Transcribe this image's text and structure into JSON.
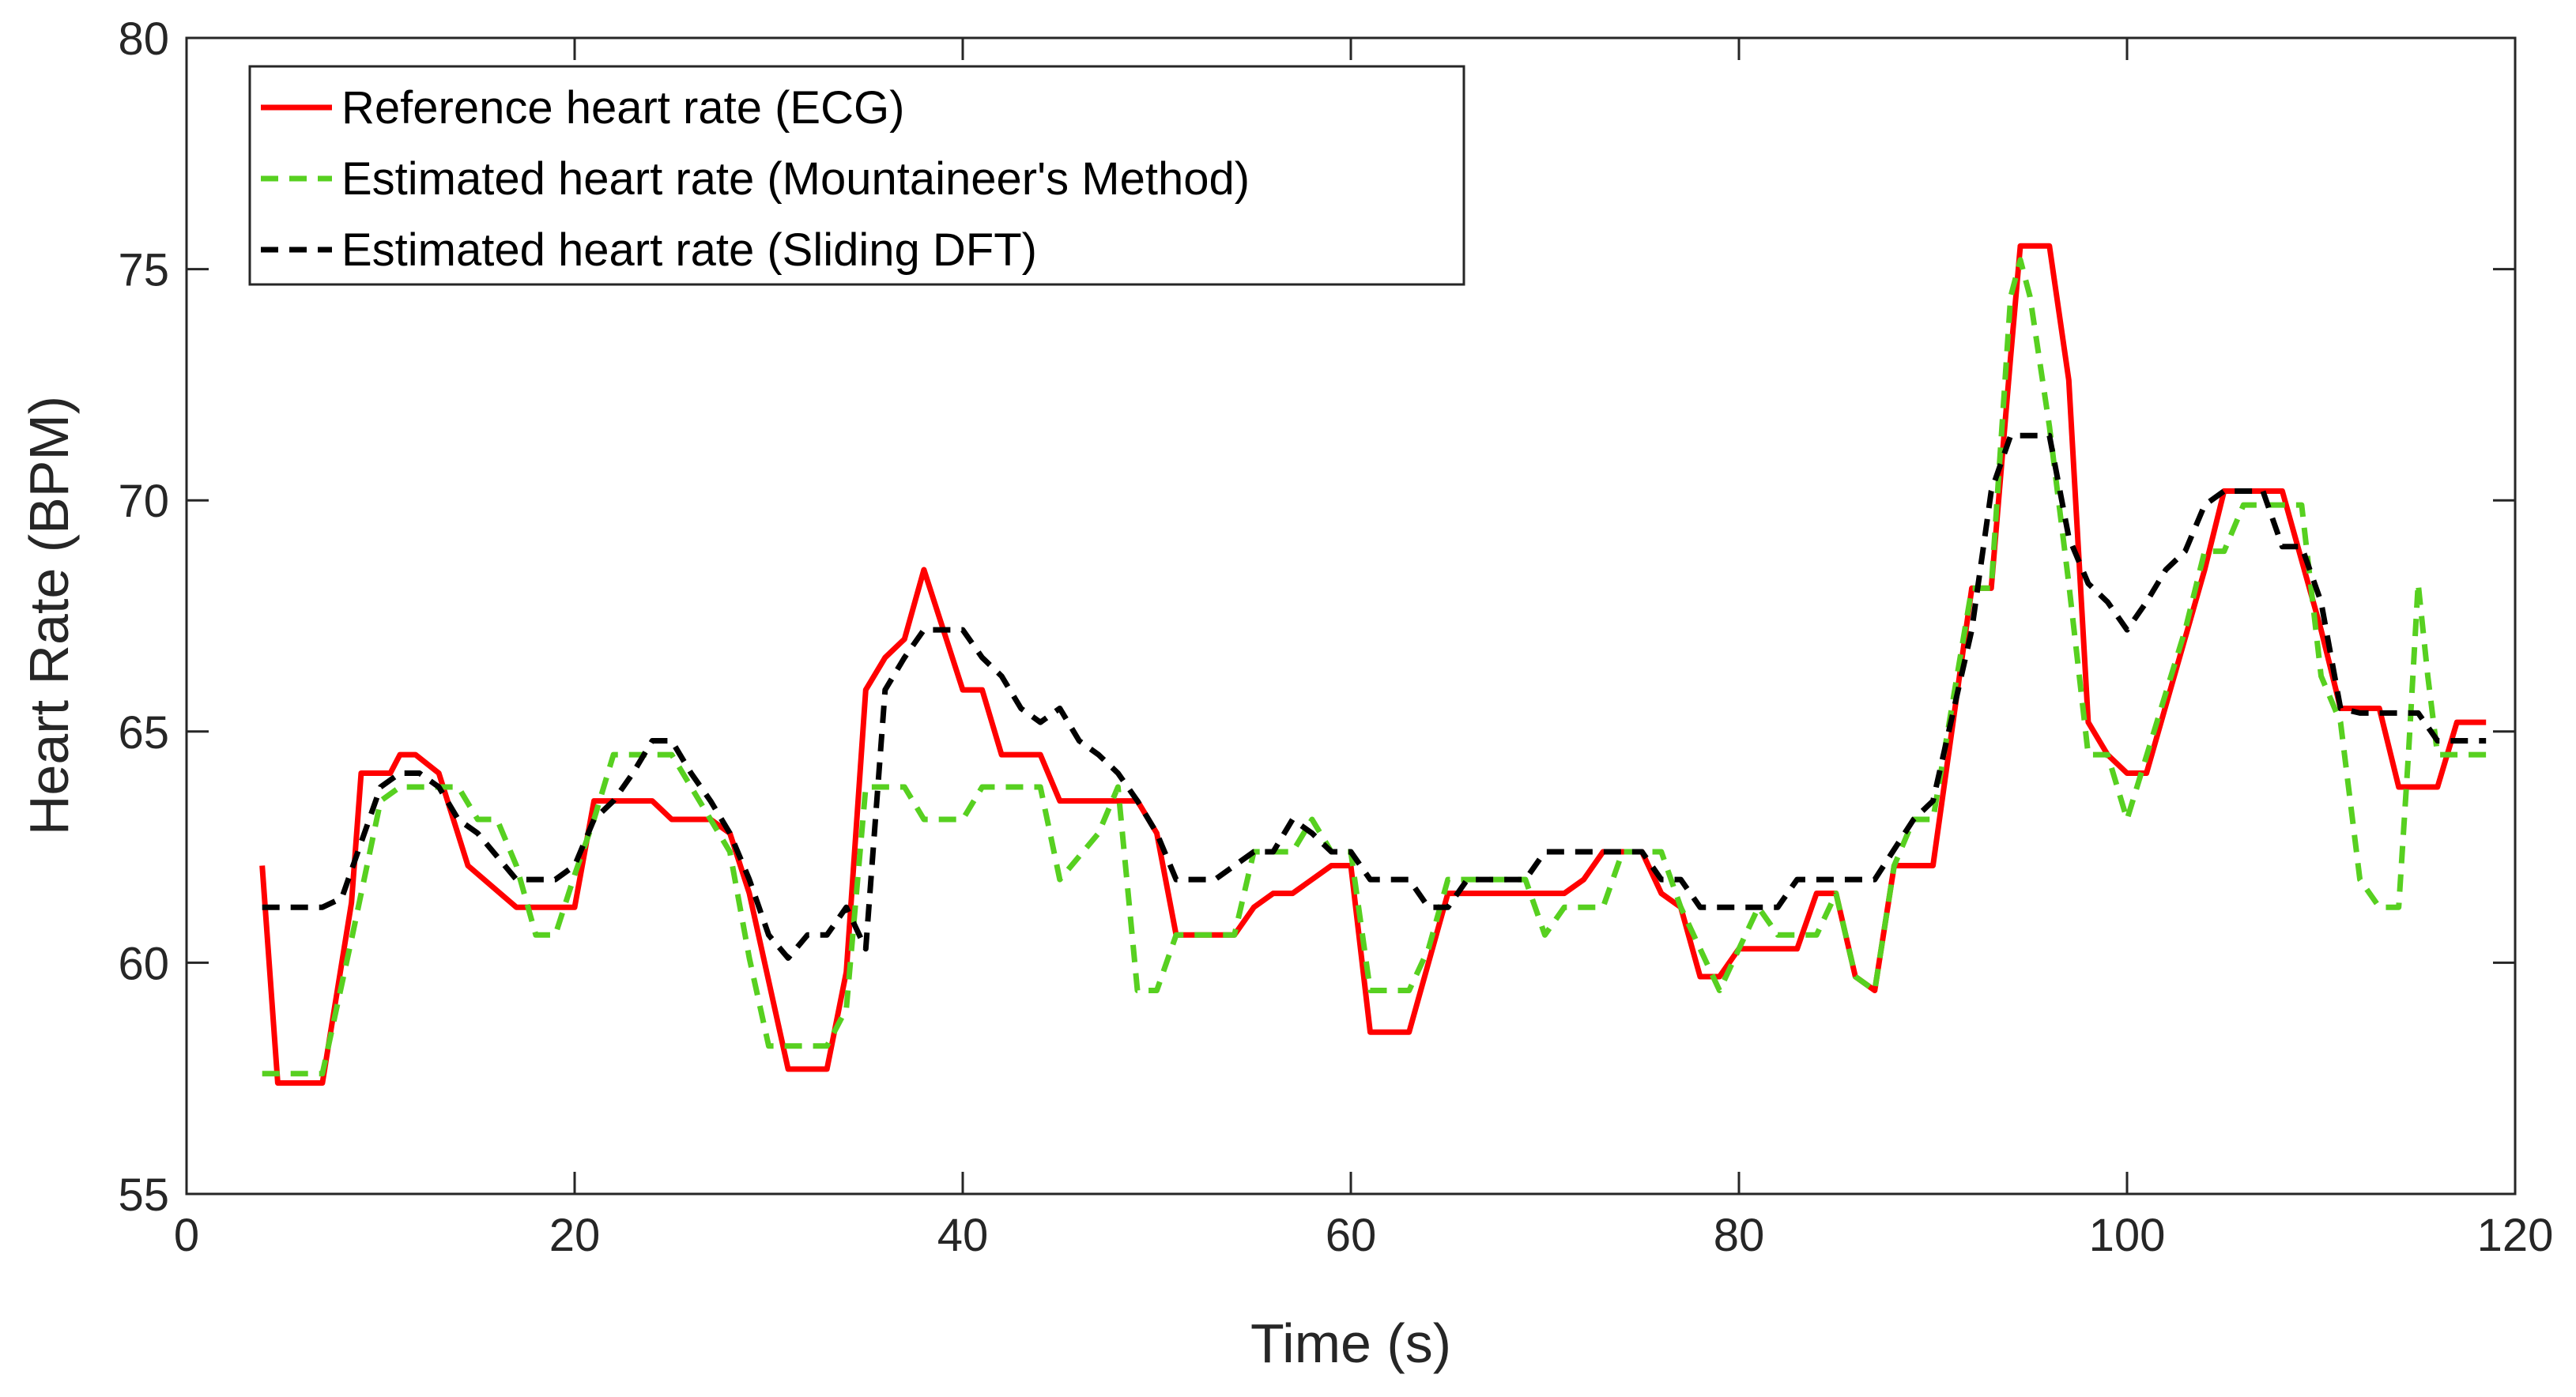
{
  "chart_data": {
    "type": "line",
    "title": "",
    "xlabel": "Time (s)",
    "ylabel": "Heart Rate (BPM)",
    "xlim": [
      0,
      120
    ],
    "ylim": [
      55,
      80
    ],
    "xticks": [
      0,
      20,
      40,
      60,
      80,
      100,
      120
    ],
    "yticks": [
      55,
      60,
      65,
      70,
      75,
      80
    ],
    "grid": false,
    "legend_position": "top-left",
    "series": [
      {
        "name": "Reference heart rate (ECG)",
        "color": "#ff0000",
        "dash": "solid",
        "points": [
          [
            3.9,
            62.1
          ],
          [
            4.7,
            57.4
          ],
          [
            7,
            57.4
          ],
          [
            8.5,
            61.3
          ],
          [
            9,
            64.1
          ],
          [
            10.5,
            64.1
          ],
          [
            11,
            64.5
          ],
          [
            11.8,
            64.5
          ],
          [
            13,
            64.1
          ],
          [
            14.5,
            62.1
          ],
          [
            17,
            61.2
          ],
          [
            20,
            61.2
          ],
          [
            21,
            63.5
          ],
          [
            24,
            63.5
          ],
          [
            25,
            63.1
          ],
          [
            27,
            63.1
          ],
          [
            28,
            62.8
          ],
          [
            29,
            61.5
          ],
          [
            31,
            57.7
          ],
          [
            33,
            57.7
          ],
          [
            34,
            59.8
          ],
          [
            35,
            65.9
          ],
          [
            36,
            66.6
          ],
          [
            37,
            67.0
          ],
          [
            38,
            68.5
          ],
          [
            40,
            65.9
          ],
          [
            41,
            65.9
          ],
          [
            42,
            64.5
          ],
          [
            44,
            64.5
          ],
          [
            45,
            63.5
          ],
          [
            49,
            63.5
          ],
          [
            50,
            62.8
          ],
          [
            51,
            60.6
          ],
          [
            54,
            60.6
          ],
          [
            55,
            61.2
          ],
          [
            56,
            61.5
          ],
          [
            57,
            61.5
          ],
          [
            59,
            62.1
          ],
          [
            60,
            62.1
          ],
          [
            61,
            58.5
          ],
          [
            63,
            58.5
          ],
          [
            65,
            61.5
          ],
          [
            70,
            61.5
          ],
          [
            71,
            61.5
          ],
          [
            72,
            61.8
          ],
          [
            73,
            62.4
          ],
          [
            75,
            62.4
          ],
          [
            76,
            61.5
          ],
          [
            77,
            61.2
          ],
          [
            78,
            59.7
          ],
          [
            79,
            59.7
          ],
          [
            80,
            60.3
          ],
          [
            83,
            60.3
          ],
          [
            84,
            61.5
          ],
          [
            85,
            61.5
          ],
          [
            86,
            59.7
          ],
          [
            87,
            59.4
          ],
          [
            88,
            62.1
          ],
          [
            90,
            62.1
          ],
          [
            92,
            68.1
          ],
          [
            93,
            68.1
          ],
          [
            94,
            73.1
          ],
          [
            94.5,
            75.5
          ],
          [
            96,
            75.5
          ],
          [
            97,
            72.6
          ],
          [
            98,
            65.2
          ],
          [
            99,
            64.5
          ],
          [
            100,
            64.1
          ],
          [
            101,
            64.1
          ],
          [
            104,
            68.5
          ],
          [
            105,
            70.2
          ],
          [
            106,
            70.2
          ],
          [
            108,
            70.2
          ],
          [
            110,
            67.2
          ],
          [
            111,
            65.5
          ],
          [
            113,
            65.5
          ],
          [
            114,
            63.8
          ],
          [
            116,
            63.8
          ],
          [
            117,
            65.2
          ],
          [
            118.5,
            65.2
          ]
        ]
      },
      {
        "name": "Estimated heart rate (Mountaineer's Method)",
        "color": "#57d020",
        "dash": "dashed",
        "points": [
          [
            3.9,
            57.6
          ],
          [
            5,
            57.6
          ],
          [
            7,
            57.6
          ],
          [
            8.5,
            60.5
          ],
          [
            10,
            63.5
          ],
          [
            11,
            63.8
          ],
          [
            14,
            63.8
          ],
          [
            15,
            63.1
          ],
          [
            16,
            63.1
          ],
          [
            17,
            62.1
          ],
          [
            18,
            60.6
          ],
          [
            19,
            60.6
          ],
          [
            20,
            61.9
          ],
          [
            21,
            63.1
          ],
          [
            22,
            64.5
          ],
          [
            25,
            64.5
          ],
          [
            27,
            63.1
          ],
          [
            28,
            62.4
          ],
          [
            29,
            60.1
          ],
          [
            30,
            58.2
          ],
          [
            33,
            58.2
          ],
          [
            34,
            59.0
          ],
          [
            35,
            63.8
          ],
          [
            37,
            63.8
          ],
          [
            38,
            63.1
          ],
          [
            40,
            63.1
          ],
          [
            41,
            63.8
          ],
          [
            44,
            63.8
          ],
          [
            45,
            61.8
          ],
          [
            47,
            62.8
          ],
          [
            48,
            63.8
          ],
          [
            49,
            59.4
          ],
          [
            50,
            59.4
          ],
          [
            51,
            60.6
          ],
          [
            54,
            60.6
          ],
          [
            55,
            62.4
          ],
          [
            57,
            62.4
          ],
          [
            58,
            63.1
          ],
          [
            59,
            62.4
          ],
          [
            60,
            62.4
          ],
          [
            61,
            59.4
          ],
          [
            63,
            59.4
          ],
          [
            64,
            60.3
          ],
          [
            65,
            61.8
          ],
          [
            68,
            61.8
          ],
          [
            69,
            61.8
          ],
          [
            70,
            60.6
          ],
          [
            71,
            61.2
          ],
          [
            73,
            61.2
          ],
          [
            74,
            62.4
          ],
          [
            76,
            62.4
          ],
          [
            77,
            61.2
          ],
          [
            79,
            59.4
          ],
          [
            80,
            60.3
          ],
          [
            81,
            61.2
          ],
          [
            82,
            60.6
          ],
          [
            84,
            60.6
          ],
          [
            85,
            61.5
          ],
          [
            86,
            59.7
          ],
          [
            87,
            59.4
          ],
          [
            88,
            62.1
          ],
          [
            89,
            63.1
          ],
          [
            90,
            63.1
          ],
          [
            92,
            68.1
          ],
          [
            93,
            68.1
          ],
          [
            94,
            74.4
          ],
          [
            94.5,
            75.2
          ],
          [
            95,
            74.4
          ],
          [
            96,
            71.6
          ],
          [
            97,
            68.2
          ],
          [
            98,
            64.5
          ],
          [
            99,
            64.5
          ],
          [
            100,
            63.1
          ],
          [
            103,
            67.2
          ],
          [
            104,
            68.9
          ],
          [
            105,
            68.9
          ],
          [
            106,
            69.9
          ],
          [
            108,
            69.9
          ],
          [
            109,
            69.9
          ],
          [
            110,
            66.2
          ],
          [
            111,
            65.2
          ],
          [
            112,
            61.8
          ],
          [
            113,
            61.2
          ],
          [
            114,
            61.2
          ],
          [
            114.5,
            64.5
          ],
          [
            115,
            68.2
          ],
          [
            115.5,
            66.2
          ],
          [
            116,
            64.5
          ],
          [
            118.5,
            64.5
          ]
        ]
      },
      {
        "name": "Estimated heart rate (Sliding DFT)",
        "color": "#000000",
        "dash": "dashed",
        "points": [
          [
            3.9,
            61.2
          ],
          [
            5,
            61.2
          ],
          [
            7,
            61.2
          ],
          [
            8,
            61.4
          ],
          [
            9,
            62.6
          ],
          [
            10,
            63.8
          ],
          [
            11,
            64.1
          ],
          [
            12,
            64.1
          ],
          [
            13,
            63.8
          ],
          [
            14,
            63.1
          ],
          [
            15,
            62.8
          ],
          [
            17,
            61.8
          ],
          [
            19,
            61.8
          ],
          [
            20,
            62.1
          ],
          [
            21,
            63.1
          ],
          [
            22,
            63.5
          ],
          [
            23,
            64.1
          ],
          [
            24,
            64.8
          ],
          [
            25,
            64.8
          ],
          [
            26,
            64.1
          ],
          [
            27,
            63.5
          ],
          [
            28,
            62.8
          ],
          [
            29,
            61.8
          ],
          [
            30,
            60.6
          ],
          [
            31,
            60.1
          ],
          [
            32,
            60.6
          ],
          [
            33,
            60.6
          ],
          [
            34,
            61.2
          ],
          [
            35,
            60.3
          ],
          [
            36,
            65.9
          ],
          [
            37,
            66.6
          ],
          [
            38,
            67.2
          ],
          [
            40,
            67.2
          ],
          [
            41,
            66.6
          ],
          [
            42,
            66.2
          ],
          [
            43,
            65.5
          ],
          [
            44,
            65.2
          ],
          [
            45,
            65.5
          ],
          [
            46,
            64.8
          ],
          [
            47,
            64.5
          ],
          [
            48,
            64.1
          ],
          [
            49,
            63.5
          ],
          [
            50,
            62.8
          ],
          [
            51,
            61.8
          ],
          [
            53,
            61.8
          ],
          [
            54,
            62.1
          ],
          [
            55,
            62.4
          ],
          [
            56,
            62.4
          ],
          [
            57,
            63.1
          ],
          [
            58,
            62.8
          ],
          [
            59,
            62.4
          ],
          [
            60,
            62.4
          ],
          [
            61,
            61.8
          ],
          [
            63,
            61.8
          ],
          [
            64,
            61.2
          ],
          [
            65,
            61.2
          ],
          [
            66,
            61.8
          ],
          [
            69,
            61.8
          ],
          [
            70,
            62.4
          ],
          [
            75,
            62.4
          ],
          [
            76,
            61.8
          ],
          [
            77,
            61.8
          ],
          [
            78,
            61.2
          ],
          [
            80,
            61.2
          ],
          [
            81,
            61.2
          ],
          [
            82,
            61.2
          ],
          [
            83,
            61.8
          ],
          [
            87,
            61.8
          ],
          [
            89,
            63.1
          ],
          [
            90,
            63.5
          ],
          [
            92,
            67.2
          ],
          [
            93,
            70.2
          ],
          [
            94,
            71.4
          ],
          [
            96,
            71.4
          ],
          [
            97,
            69.2
          ],
          [
            98,
            68.2
          ],
          [
            99,
            67.8
          ],
          [
            100,
            67.2
          ],
          [
            101,
            67.8
          ],
          [
            102,
            68.5
          ],
          [
            103,
            68.9
          ],
          [
            104,
            69.9
          ],
          [
            105,
            70.2
          ],
          [
            107,
            70.2
          ],
          [
            108,
            69.0
          ],
          [
            109,
            69.0
          ],
          [
            110,
            67.8
          ],
          [
            111,
            65.5
          ],
          [
            112,
            65.4
          ],
          [
            113,
            65.4
          ],
          [
            114,
            65.4
          ],
          [
            115,
            65.4
          ],
          [
            116,
            64.8
          ],
          [
            118.5,
            64.8
          ]
        ]
      }
    ]
  }
}
